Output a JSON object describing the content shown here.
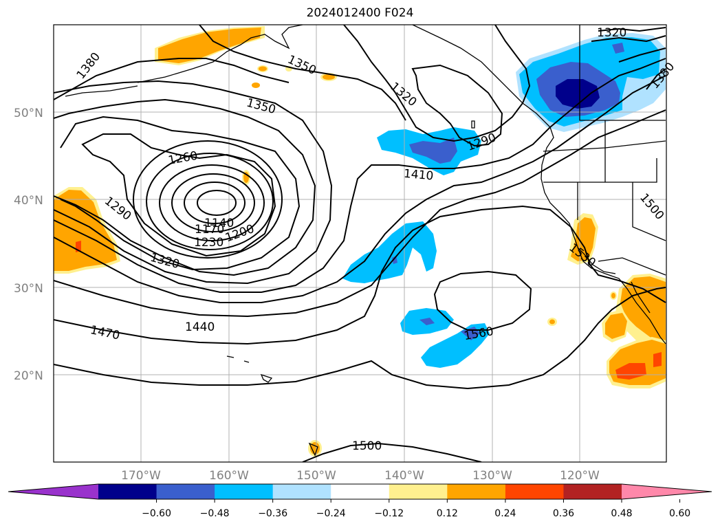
{
  "title": "2024012400 F024",
  "map": {
    "lat_labels": [
      "50°N",
      "40°N",
      "30°N",
      "20°N"
    ],
    "lon_labels": [
      "170°W",
      "160°W",
      "150°W",
      "140°W",
      "130°W",
      "120°W"
    ],
    "contour_labels": [
      "1380",
      "1350",
      "1350",
      "1320",
      "1320",
      "1290",
      "1410",
      "1260",
      "1290",
      "1140",
      "1170",
      "1200",
      "1230",
      "1320",
      "1440",
      "1470",
      "1500",
      "1530",
      "1560",
      "1500",
      "1380"
    ]
  },
  "colorbar": {
    "ticks": [
      "−0.60",
      "−0.48",
      "−0.36",
      "−0.24",
      "−0.12",
      "0.12",
      "0.24",
      "0.36",
      "0.48",
      "0.60"
    ],
    "colors": [
      "#9932cc",
      "#00008b",
      "#3a5fcd",
      "#00bfff",
      "#b0e2ff",
      "#ffffff",
      "#fff08f",
      "#ffa500",
      "#ff4500",
      "#b22222",
      "#ff88aa"
    ]
  }
}
